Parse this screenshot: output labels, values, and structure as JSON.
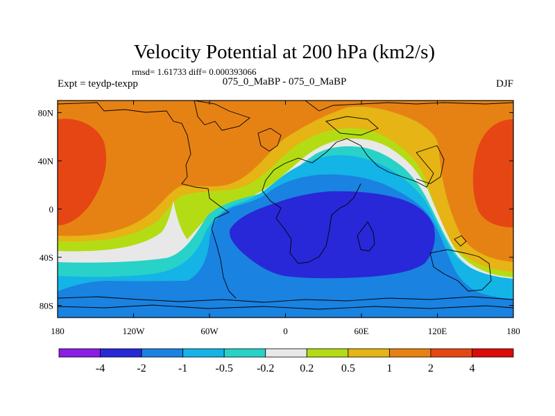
{
  "chart_data": {
    "type": "heatmap",
    "title": "Velocity Potential at 200 hPa (km2/s)",
    "stats": "rmsd= 1.61733  diff= 0.000393066",
    "left_label": "Expt = teydp-texpp",
    "center_label": "075_0_MaBP - 075_0_MaBP",
    "right_label": "DJF",
    "x_ticks": [
      {
        "value": -180,
        "label": "180"
      },
      {
        "value": -120,
        "label": "120W"
      },
      {
        "value": -60,
        "label": "60W"
      },
      {
        "value": 0,
        "label": "0"
      },
      {
        "value": 60,
        "label": "60E"
      },
      {
        "value": 120,
        "label": "120E"
      },
      {
        "value": 180,
        "label": "180"
      }
    ],
    "y_ticks": [
      {
        "value": 80,
        "label": "80N"
      },
      {
        "value": 40,
        "label": "40N"
      },
      {
        "value": 0,
        "label": "0"
      },
      {
        "value": -40,
        "label": "40S"
      },
      {
        "value": -80,
        "label": "80S"
      }
    ],
    "xlim": [
      -180,
      180
    ],
    "ylim": [
      -90,
      90
    ],
    "colorbar": {
      "boundaries": [
        "-4",
        "-2",
        "-1",
        "-0.5",
        "-0.2",
        "0.2",
        "0.5",
        "1",
        "2",
        "4"
      ],
      "colors": [
        "#8c1ce6",
        "#2828d8",
        "#1a82e0",
        "#14b4e6",
        "#28d2c8",
        "#e8e8e8",
        "#b4dc14",
        "#e6b414",
        "#e68214",
        "#e64614",
        "#dc0a0a"
      ]
    },
    "fill_levels": [
      {
        "name": "below-minus-2",
        "threshold": -2,
        "color": "#2828d8"
      },
      {
        "name": "minus-2-to-minus-1",
        "threshold": -1,
        "color": "#1a82e0"
      },
      {
        "name": "minus-1-to-minus-05",
        "threshold": -0.5,
        "color": "#14b4e6"
      },
      {
        "name": "minus-05-to-minus-02",
        "threshold": -0.2,
        "color": "#28d2c8"
      },
      {
        "name": "minus-02-to-02",
        "threshold": 0.2,
        "color": "#e8e8e8"
      },
      {
        "name": "02-to-05",
        "threshold": 0.5,
        "color": "#b4dc14"
      },
      {
        "name": "05-to-1",
        "threshold": 1,
        "color": "#e6b414"
      },
      {
        "name": "1-to-2",
        "threshold": 2,
        "color": "#e68214"
      },
      {
        "name": "2-to-4",
        "threshold": 4,
        "color": "#e64614"
      }
    ]
  }
}
